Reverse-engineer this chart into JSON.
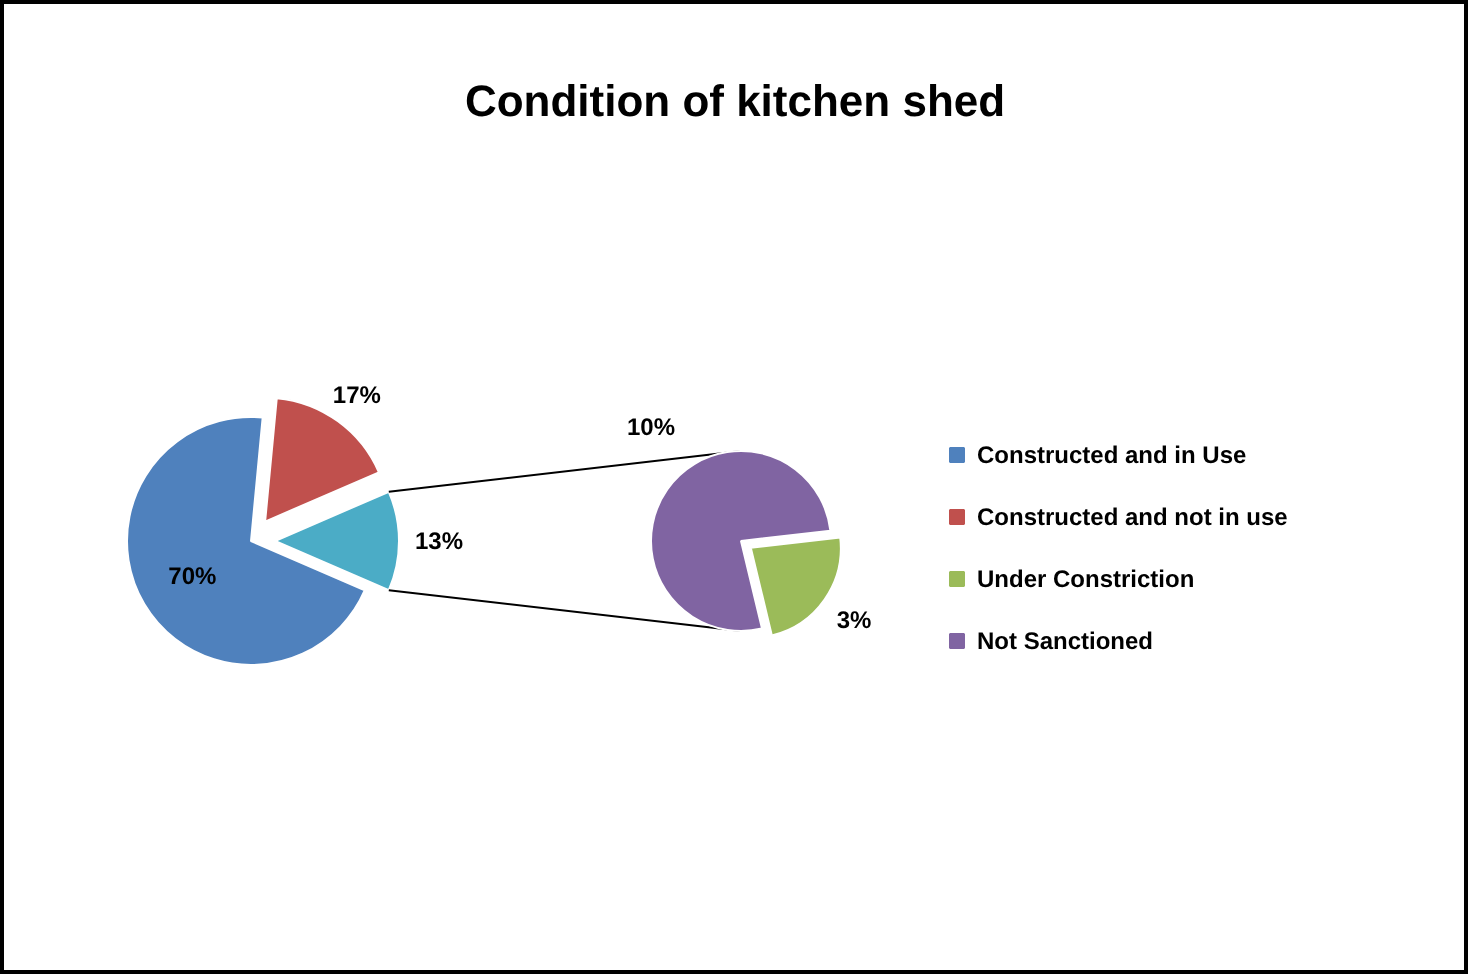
{
  "chart_data": [
    {
      "type": "pie",
      "title": "Condition of kitchen shed",
      "categories": [
        "Constructed and in Use",
        "Constructed and not in use",
        null
      ],
      "values": [
        70,
        17,
        13
      ],
      "colors": [
        "#4f81bd",
        "#c0504d",
        "#4bacc6"
      ],
      "value_labels": [
        "70%",
        "17%",
        "13%"
      ],
      "legend": "right"
    },
    {
      "type": "pie",
      "categories": [
        "Under Constriction",
        "Not Sanctioned"
      ],
      "values": [
        3,
        10
      ],
      "colors": [
        "#9bbb59",
        "#8064a2"
      ],
      "value_labels": [
        "3%",
        "10%"
      ],
      "legend": "right"
    }
  ]
}
